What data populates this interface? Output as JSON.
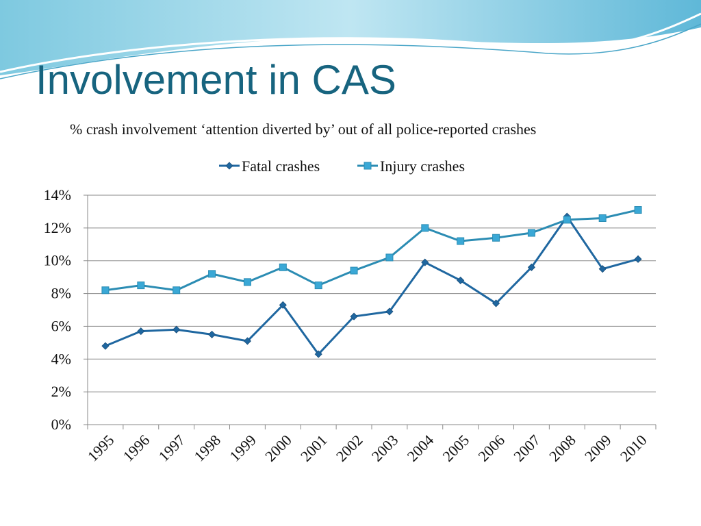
{
  "chart_data": {
    "type": "line",
    "title": "Involvement in CAS",
    "subtitle": "% crash involvement ‘attention diverted by’ out of all police-reported crashes",
    "categories": [
      "1995",
      "1996",
      "1997",
      "1998",
      "1999",
      "2000",
      "2001",
      "2002",
      "2003",
      "2004",
      "2005",
      "2006",
      "2007",
      "2008",
      "2009",
      "2010"
    ],
    "series": [
      {
        "name": "Fatal crashes",
        "color": "#1f67a0",
        "marker": "diamond",
        "values": [
          4.8,
          5.7,
          5.8,
          5.5,
          5.1,
          7.3,
          4.3,
          6.6,
          6.9,
          9.9,
          8.8,
          7.4,
          9.6,
          12.7,
          9.5,
          10.1
        ]
      },
      {
        "name": "Injury crashes",
        "color": "#2b8cb3",
        "marker": "square",
        "values": [
          8.2,
          8.5,
          8.2,
          9.2,
          8.7,
          9.6,
          8.5,
          9.4,
          10.2,
          12.0,
          11.2,
          11.4,
          11.7,
          12.5,
          12.6,
          13.1
        ]
      }
    ],
    "ylim": [
      0,
      14
    ],
    "yticks": [
      {
        "value": 0,
        "label": "0%"
      },
      {
        "value": 2,
        "label": "2%"
      },
      {
        "value": 4,
        "label": "4%"
      },
      {
        "value": 6,
        "label": "6%"
      },
      {
        "value": 8,
        "label": "8%"
      },
      {
        "value": 10,
        "label": "10%"
      },
      {
        "value": 12,
        "label": "12%"
      },
      {
        "value": 14,
        "label": "14%"
      }
    ],
    "grid": true,
    "legend": "top"
  }
}
